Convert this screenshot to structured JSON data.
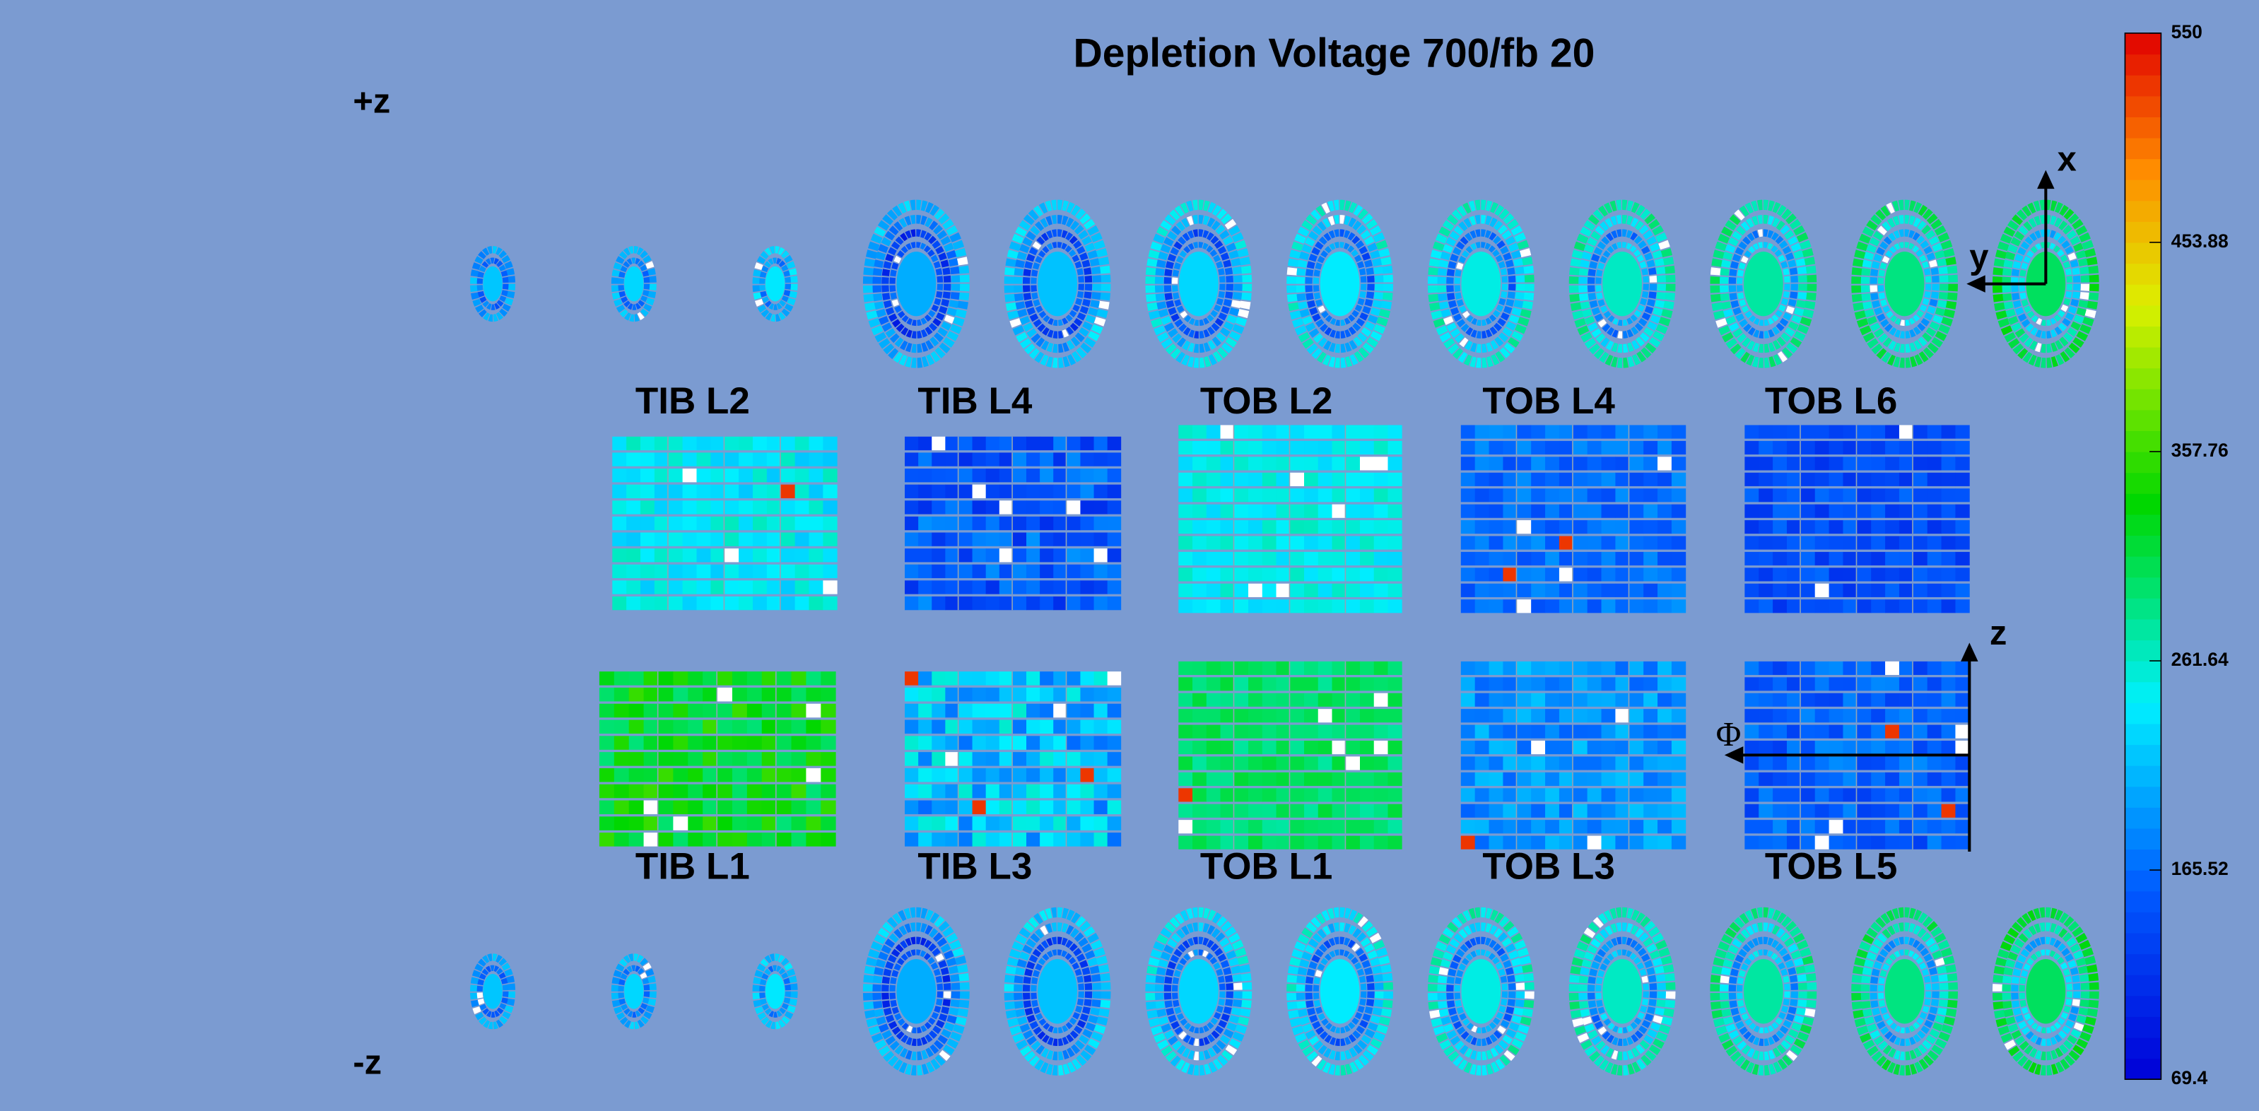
{
  "title": "Depletion Voltage 700/fb 20",
  "side_labels": {
    "plus": "+z",
    "minus": "-z"
  },
  "layers_top": [
    "TIB L2",
    "TIB L4",
    "TOB L2",
    "TOB L4",
    "TOB L6"
  ],
  "layers_bottom": [
    "TIB L1",
    "TIB L3",
    "TOB L1",
    "TOB L3",
    "TOB L5"
  ],
  "axes": {
    "x": "x",
    "y": "y",
    "z": "z",
    "phi": "Φ"
  },
  "colorbar": {
    "range": [
      69.4,
      550
    ],
    "ticks": [
      69.4,
      165.52,
      261.64,
      357.76,
      453.88,
      550
    ]
  }
}
